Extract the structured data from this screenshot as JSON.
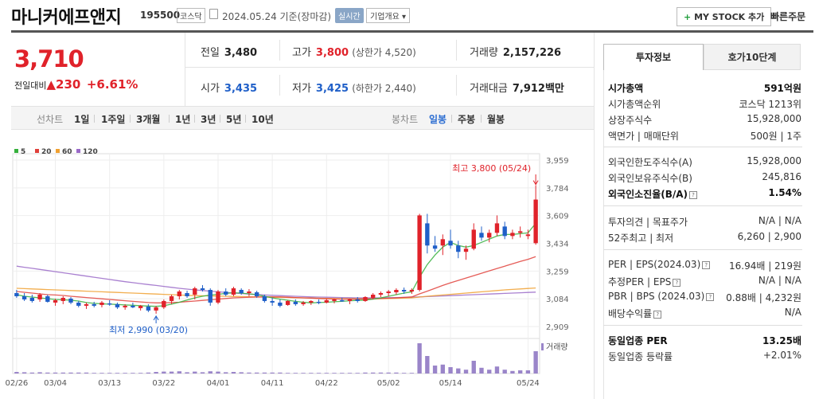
{
  "header": {
    "company": "마니커에프앤지",
    "code": "195500",
    "market": "코스닥",
    "date": "2024.05.24 기준(장마감)",
    "realtime": "실시간",
    "company_info": "기업개요 ▾",
    "mystock": "MY STOCK 추가",
    "mystock_plus": "+",
    "quick_order": "빠른주문"
  },
  "price": {
    "current": "3,710",
    "change_label": "전일대비",
    "change_arrow": "▲",
    "change_value": "230",
    "change_pct": "+6.61%"
  },
  "quote": {
    "prev_label": "전일",
    "prev": "3,480",
    "high_label": "고가",
    "high": "3,800",
    "upper_limit": "(상한가 4,520)",
    "volume_label": "거래량",
    "volume": "2,157,226",
    "open_label": "시가",
    "open": "3,435",
    "low_label": "저가",
    "low": "3,425",
    "lower_limit": "(하한가 2,440)",
    "amount_label": "거래대금",
    "amount": "7,912",
    "amount_unit": "백만"
  },
  "toolbar": {
    "line_chart": "선차트",
    "periods": [
      "1일",
      "1주일",
      "3개월",
      "1년",
      "3년",
      "5년",
      "10년"
    ],
    "candle_chart": "봉차트",
    "candle_periods": [
      "일봉",
      "주봉",
      "월봉"
    ],
    "active_candle": "일봉"
  },
  "chart_data": {
    "type": "candlestick",
    "legend": [
      "5",
      "20",
      "60",
      "120"
    ],
    "legend_colors": [
      "#35b03c",
      "#e0403a",
      "#f0a030",
      "#9a6ac8"
    ],
    "up_color": "#e0222a",
    "down_color": "#1f5fc8",
    "ylim": [
      2909,
      3959
    ],
    "y_ticks": [
      "3,959",
      "3,784",
      "3,609",
      "3,434",
      "3,259",
      "3,084",
      "2,909"
    ],
    "x_ticks": [
      "02/26",
      "03/04",
      "03/13",
      "03/22",
      "04/01",
      "04/11",
      "04/22",
      "05/02",
      "05/14",
      "05/24"
    ],
    "volume_label": "거래량",
    "max_annotation": "최고 3,800 (05/24)",
    "min_annotation": "최저 2,990 (03/20)",
    "candles": [
      {
        "o": 3120,
        "h": 3140,
        "l": 3090,
        "c": 3100,
        "v": 0.05
      },
      {
        "o": 3100,
        "h": 3120,
        "l": 3070,
        "c": 3080,
        "v": 0.04
      },
      {
        "o": 3090,
        "h": 3110,
        "l": 3060,
        "c": 3070,
        "v": 0.03
      },
      {
        "o": 3080,
        "h": 3120,
        "l": 3065,
        "c": 3110,
        "v": 0.04
      },
      {
        "o": 3100,
        "h": 3110,
        "l": 3060,
        "c": 3065,
        "v": 0.03
      },
      {
        "o": 3060,
        "h": 3085,
        "l": 3040,
        "c": 3075,
        "v": 0.03
      },
      {
        "o": 3070,
        "h": 3100,
        "l": 3050,
        "c": 3090,
        "v": 0.03
      },
      {
        "o": 3085,
        "h": 3095,
        "l": 3050,
        "c": 3060,
        "v": 0.03
      },
      {
        "o": 3060,
        "h": 3070,
        "l": 3030,
        "c": 3040,
        "v": 0.03
      },
      {
        "o": 3040,
        "h": 3060,
        "l": 3020,
        "c": 3050,
        "v": 0.03
      },
      {
        "o": 3050,
        "h": 3065,
        "l": 3030,
        "c": 3040,
        "v": 0.02
      },
      {
        "o": 3045,
        "h": 3070,
        "l": 3030,
        "c": 3060,
        "v": 0.02
      },
      {
        "o": 3055,
        "h": 3075,
        "l": 3040,
        "c": 3050,
        "v": 0.02
      },
      {
        "o": 3050,
        "h": 3060,
        "l": 3020,
        "c": 3030,
        "v": 0.02
      },
      {
        "o": 3030,
        "h": 3050,
        "l": 3015,
        "c": 3040,
        "v": 0.02
      },
      {
        "o": 3040,
        "h": 3060,
        "l": 3025,
        "c": 3030,
        "v": 0.02
      },
      {
        "o": 3025,
        "h": 3045,
        "l": 3010,
        "c": 3040,
        "v": 0.02
      },
      {
        "o": 3035,
        "h": 3050,
        "l": 3000,
        "c": 3010,
        "v": 0.03
      },
      {
        "o": 3010,
        "h": 3040,
        "l": 2990,
        "c": 3030,
        "v": 0.05
      },
      {
        "o": 3030,
        "h": 3080,
        "l": 3020,
        "c": 3070,
        "v": 0.06
      },
      {
        "o": 3070,
        "h": 3110,
        "l": 3050,
        "c": 3100,
        "v": 0.06
      },
      {
        "o": 3100,
        "h": 3140,
        "l": 3080,
        "c": 3130,
        "v": 0.07
      },
      {
        "o": 3120,
        "h": 3135,
        "l": 3090,
        "c": 3100,
        "v": 0.04
      },
      {
        "o": 3110,
        "h": 3160,
        "l": 3080,
        "c": 3150,
        "v": 0.06
      },
      {
        "o": 3150,
        "h": 3170,
        "l": 3130,
        "c": 3140,
        "v": 0.04
      },
      {
        "o": 3140,
        "h": 3150,
        "l": 3040,
        "c": 3060,
        "v": 0.07
      },
      {
        "o": 3060,
        "h": 3140,
        "l": 3050,
        "c": 3130,
        "v": 0.06
      },
      {
        "o": 3130,
        "h": 3150,
        "l": 3100,
        "c": 3110,
        "v": 0.04
      },
      {
        "o": 3110,
        "h": 3160,
        "l": 3100,
        "c": 3150,
        "v": 0.05
      },
      {
        "o": 3140,
        "h": 3150,
        "l": 3110,
        "c": 3120,
        "v": 0.04
      },
      {
        "o": 3120,
        "h": 3145,
        "l": 3100,
        "c": 3130,
        "v": 0.03
      },
      {
        "o": 3125,
        "h": 3135,
        "l": 3090,
        "c": 3100,
        "v": 0.03
      },
      {
        "o": 3100,
        "h": 3110,
        "l": 3060,
        "c": 3070,
        "v": 0.03
      },
      {
        "o": 3070,
        "h": 3090,
        "l": 3040,
        "c": 3060,
        "v": 0.03
      },
      {
        "o": 3060,
        "h": 3080,
        "l": 3030,
        "c": 3040,
        "v": 0.03
      },
      {
        "o": 3045,
        "h": 3075,
        "l": 3040,
        "c": 3070,
        "v": 0.02
      },
      {
        "o": 3065,
        "h": 3080,
        "l": 3040,
        "c": 3050,
        "v": 0.02
      },
      {
        "o": 3050,
        "h": 3070,
        "l": 3040,
        "c": 3060,
        "v": 0.02
      },
      {
        "o": 3060,
        "h": 3075,
        "l": 3045,
        "c": 3070,
        "v": 0.02
      },
      {
        "o": 3065,
        "h": 3080,
        "l": 3050,
        "c": 3060,
        "v": 0.02
      },
      {
        "o": 3060,
        "h": 3085,
        "l": 3055,
        "c": 3075,
        "v": 0.02
      },
      {
        "o": 3070,
        "h": 3085,
        "l": 3055,
        "c": 3080,
        "v": 0.02
      },
      {
        "o": 3075,
        "h": 3090,
        "l": 3065,
        "c": 3070,
        "v": 0.02
      },
      {
        "o": 3070,
        "h": 3085,
        "l": 3050,
        "c": 3080,
        "v": 0.02
      },
      {
        "o": 3080,
        "h": 3095,
        "l": 3060,
        "c": 3070,
        "v": 0.02
      },
      {
        "o": 3070,
        "h": 3100,
        "l": 3065,
        "c": 3095,
        "v": 0.03
      },
      {
        "o": 3090,
        "h": 3120,
        "l": 3080,
        "c": 3110,
        "v": 0.03
      },
      {
        "o": 3110,
        "h": 3130,
        "l": 3095,
        "c": 3120,
        "v": 0.03
      },
      {
        "o": 3120,
        "h": 3140,
        "l": 3100,
        "c": 3130,
        "v": 0.03
      },
      {
        "o": 3125,
        "h": 3150,
        "l": 3110,
        "c": 3140,
        "v": 0.03
      },
      {
        "o": 3140,
        "h": 3155,
        "l": 3115,
        "c": 3130,
        "v": 0.02
      },
      {
        "o": 3130,
        "h": 3150,
        "l": 3115,
        "c": 3140,
        "v": 0.02
      },
      {
        "o": 3140,
        "h": 3620,
        "l": 3130,
        "c": 3610,
        "v": 0.95
      },
      {
        "o": 3560,
        "h": 3620,
        "l": 3370,
        "c": 3420,
        "v": 0.55
      },
      {
        "o": 3420,
        "h": 3480,
        "l": 3380,
        "c": 3400,
        "v": 0.25
      },
      {
        "o": 3420,
        "h": 3490,
        "l": 3360,
        "c": 3460,
        "v": 0.28
      },
      {
        "o": 3450,
        "h": 3520,
        "l": 3400,
        "c": 3420,
        "v": 0.2
      },
      {
        "o": 3420,
        "h": 3450,
        "l": 3340,
        "c": 3380,
        "v": 0.16
      },
      {
        "o": 3380,
        "h": 3420,
        "l": 3330,
        "c": 3400,
        "v": 0.12
      },
      {
        "o": 3400,
        "h": 3560,
        "l": 3390,
        "c": 3520,
        "v": 0.4
      },
      {
        "o": 3500,
        "h": 3540,
        "l": 3450,
        "c": 3470,
        "v": 0.18
      },
      {
        "o": 3470,
        "h": 3520,
        "l": 3440,
        "c": 3500,
        "v": 0.12
      },
      {
        "o": 3500,
        "h": 3610,
        "l": 3480,
        "c": 3560,
        "v": 0.22
      },
      {
        "o": 3540,
        "h": 3570,
        "l": 3460,
        "c": 3480,
        "v": 0.12
      },
      {
        "o": 3480,
        "h": 3520,
        "l": 3460,
        "c": 3500,
        "v": 0.08
      },
      {
        "o": 3500,
        "h": 3540,
        "l": 3470,
        "c": 3510,
        "v": 0.1
      },
      {
        "o": 3480,
        "h": 3520,
        "l": 3460,
        "c": 3490,
        "v": 0.1
      },
      {
        "o": 3435,
        "h": 3800,
        "l": 3425,
        "c": 3710,
        "v": 0.7
      }
    ],
    "ma5": [
      3110,
      3100,
      3095,
      3090,
      3085,
      3080,
      3078,
      3075,
      3070,
      3060,
      3055,
      3052,
      3050,
      3048,
      3045,
      3043,
      3040,
      3038,
      3036,
      3040,
      3050,
      3062,
      3076,
      3090,
      3100,
      3108,
      3112,
      3118,
      3122,
      3120,
      3115,
      3110,
      3100,
      3090,
      3082,
      3075,
      3068,
      3062,
      3058,
      3060,
      3062,
      3065,
      3068,
      3072,
      3074,
      3076,
      3082,
      3090,
      3100,
      3110,
      3120,
      3128,
      3220,
      3300,
      3360,
      3410,
      3440,
      3420,
      3410,
      3420,
      3440,
      3460,
      3480,
      3490,
      3490,
      3495,
      3500,
      3560
    ],
    "ma20": [
      3130,
      3125,
      3120,
      3115,
      3110,
      3108,
      3105,
      3100,
      3096,
      3092,
      3088,
      3084,
      3080,
      3076,
      3072,
      3068,
      3064,
      3060,
      3058,
      3058,
      3060,
      3062,
      3066,
      3070,
      3074,
      3078,
      3082,
      3086,
      3090,
      3092,
      3094,
      3095,
      3096,
      3096,
      3096,
      3094,
      3092,
      3090,
      3088,
      3086,
      3084,
      3083,
      3082,
      3082,
      3082,
      3083,
      3084,
      3086,
      3088,
      3090,
      3093,
      3096,
      3115,
      3132,
      3150,
      3168,
      3185,
      3200,
      3215,
      3230,
      3245,
      3260,
      3275,
      3290,
      3305,
      3320,
      3333,
      3350
    ],
    "ma60": [
      3150,
      3148,
      3146,
      3144,
      3142,
      3140,
      3138,
      3136,
      3134,
      3132,
      3130,
      3128,
      3126,
      3124,
      3122,
      3120,
      3118,
      3116,
      3114,
      3112,
      3110,
      3108,
      3106,
      3104,
      3103,
      3102,
      3101,
      3100,
      3099,
      3098,
      3097,
      3096,
      3095,
      3094,
      3093,
      3092,
      3091,
      3090,
      3089,
      3088,
      3087,
      3086,
      3085,
      3084,
      3084,
      3084,
      3084,
      3085,
      3086,
      3087,
      3088,
      3090,
      3095,
      3100,
      3104,
      3108,
      3112,
      3116,
      3120,
      3124,
      3128,
      3132,
      3136,
      3140,
      3143,
      3146,
      3149,
      3152
    ],
    "ma120": [
      3290,
      3283,
      3276,
      3269,
      3262,
      3255,
      3248,
      3241,
      3234,
      3227,
      3220,
      3213,
      3206,
      3199,
      3192,
      3186,
      3180,
      3174,
      3168,
      3162,
      3156,
      3150,
      3145,
      3140,
      3136,
      3132,
      3128,
      3124,
      3120,
      3117,
      3114,
      3111,
      3108,
      3106,
      3104,
      3102,
      3100,
      3098,
      3096,
      3095,
      3094,
      3093,
      3092,
      3091,
      3090,
      3090,
      3090,
      3090,
      3091,
      3092,
      3093,
      3094,
      3096,
      3098,
      3100,
      3102,
      3104,
      3106,
      3108,
      3110,
      3112,
      3114,
      3116,
      3118,
      3120,
      3122,
      3124,
      3126
    ]
  },
  "sidebar": {
    "tab1": "투자정보",
    "tab2": "호가10단계",
    "rows": [
      {
        "k": "시가총액",
        "v": "591억원"
      },
      {
        "k": "시가총액순위",
        "v": "코스닥 1213위"
      },
      {
        "k": "상장주식수",
        "v": "15,928,000"
      },
      {
        "k": "액면가 | 매매단위",
        "v": "500원 | 1주"
      },
      {
        "k": "외국인한도주식수(A)",
        "v": "15,928,000"
      },
      {
        "k": "외국인보유주식수(B)",
        "v": "245,816"
      },
      {
        "k": "외국인소진율(B/A)",
        "v": "1.54%"
      },
      {
        "k": "투자의견 | 목표주가",
        "v": "N/A | N/A"
      },
      {
        "k": "52주최고 | 최저",
        "v": "6,260 | 2,900"
      },
      {
        "k": "PER | EPS(2024.03)",
        "v": "16.94배 | 219원"
      },
      {
        "k": "추정PER | EPS",
        "v": "N/A | N/A"
      },
      {
        "k": "PBR | BPS (2024.03)",
        "v": "0.88배 | 4,232원"
      },
      {
        "k": "배당수익률",
        "v": "N/A"
      },
      {
        "k": "동일업종 PER",
        "v": "13.25배"
      },
      {
        "k": "동일업종 등락률",
        "v": "+2.01%"
      }
    ]
  }
}
